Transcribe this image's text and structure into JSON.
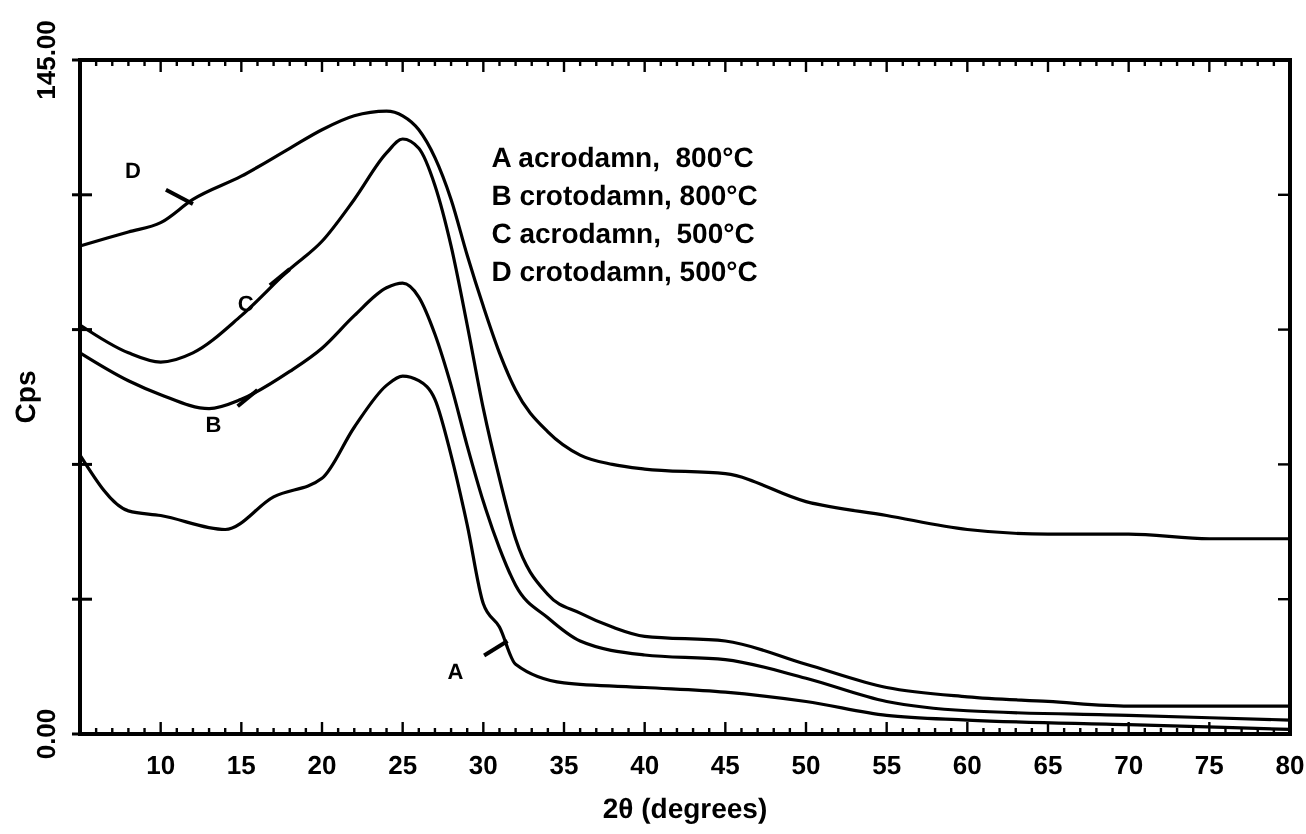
{
  "chart_data": {
    "type": "line",
    "xlabel": "2θ (degrees)",
    "ylabel": "Cps",
    "xlim": [
      5,
      80
    ],
    "ylim": [
      0,
      145
    ],
    "xticks": [
      {
        "value": 6,
        "label": null
      },
      {
        "value": 7,
        "label": null
      },
      {
        "value": 8,
        "label": null
      },
      {
        "value": 9,
        "label": null
      },
      10,
      {
        "value": 11,
        "label": null
      },
      {
        "value": 12,
        "label": null
      },
      {
        "value": 13,
        "label": null
      },
      {
        "value": 14,
        "label": null
      },
      15,
      {
        "value": 16,
        "label": null
      },
      {
        "value": 17,
        "label": null
      },
      {
        "value": 18,
        "label": null
      },
      {
        "value": 19,
        "label": null
      },
      20,
      {
        "value": 21,
        "label": null
      },
      {
        "value": 22,
        "label": null
      },
      {
        "value": 23,
        "label": null
      },
      {
        "value": 24,
        "label": null
      },
      25,
      {
        "value": 26,
        "label": null
      },
      {
        "value": 27,
        "label": null
      },
      {
        "value": 28,
        "label": null
      },
      {
        "value": 29,
        "label": null
      },
      30,
      {
        "value": 31,
        "label": null
      },
      {
        "value": 32,
        "label": null
      },
      {
        "value": 33,
        "label": null
      },
      {
        "value": 34,
        "label": null
      },
      35,
      {
        "value": 36,
        "label": null
      },
      {
        "value": 37,
        "label": null
      },
      {
        "value": 38,
        "label": null
      },
      {
        "value": 39,
        "label": null
      },
      40,
      {
        "value": 41,
        "label": null
      },
      {
        "value": 42,
        "label": null
      },
      {
        "value": 43,
        "label": null
      },
      {
        "value": 44,
        "label": null
      },
      45,
      {
        "value": 46,
        "label": null
      },
      {
        "value": 47,
        "label": null
      },
      {
        "value": 48,
        "label": null
      },
      {
        "value": 49,
        "label": null
      },
      50,
      {
        "value": 51,
        "label": null
      },
      {
        "value": 52,
        "label": null
      },
      {
        "value": 53,
        "label": null
      },
      {
        "value": 54,
        "label": null
      },
      55,
      {
        "value": 56,
        "label": null
      },
      {
        "value": 57,
        "label": null
      },
      {
        "value": 58,
        "label": null
      },
      {
        "value": 59,
        "label": null
      },
      60,
      {
        "value": 61,
        "label": null
      },
      {
        "value": 62,
        "label": null
      },
      {
        "value": 63,
        "label": null
      },
      {
        "value": 64,
        "label": null
      },
      65,
      {
        "value": 66,
        "label": null
      },
      {
        "value": 67,
        "label": null
      },
      {
        "value": 68,
        "label": null
      },
      {
        "value": 69,
        "label": null
      },
      70,
      {
        "value": 71,
        "label": null
      },
      {
        "value": 72,
        "label": null
      },
      {
        "value": 73,
        "label": null
      },
      {
        "value": 74,
        "label": null
      },
      75,
      {
        "value": 76,
        "label": null
      },
      {
        "value": 77,
        "label": null
      },
      {
        "value": 78,
        "label": null
      },
      {
        "value": 79,
        "label": null
      },
      80
    ],
    "yticks": [
      {
        "value": 0,
        "label": "0.00"
      },
      {
        "value": 29,
        "label": null
      },
      {
        "value": 58,
        "label": null
      },
      {
        "value": 87,
        "label": null
      },
      {
        "value": 116,
        "label": null
      },
      {
        "value": 145,
        "label": "145.00"
      }
    ],
    "grid": false,
    "marker": "none",
    "line_style": "solid",
    "series": [
      {
        "color": "#000000",
        "x": [
          5,
          8,
          10,
          12,
          15,
          18,
          20,
          22,
          24,
          25,
          26,
          27,
          28,
          29,
          30,
          31,
          32,
          34,
          36,
          38,
          40,
          45,
          50,
          55,
          60,
          65,
          70,
          75,
          80
        ],
        "values": [
          105,
          108,
          110,
          115,
          120,
          126,
          130,
          133,
          134,
          133,
          130,
          124,
          115,
          103,
          92,
          82,
          74,
          65,
          60,
          58,
          57,
          56,
          50,
          47,
          44,
          43,
          43,
          42,
          42
        ]
      },
      {
        "color": "#000000",
        "x": [
          5,
          8,
          10,
          12,
          15,
          18,
          20,
          22,
          24,
          25,
          26,
          27,
          28,
          29,
          30,
          31,
          32,
          34,
          36,
          38,
          40,
          45,
          50,
          55,
          60,
          65,
          70,
          75,
          80
        ],
        "values": [
          88,
          82,
          80,
          82,
          90,
          100,
          106,
          115,
          125,
          128,
          126,
          118,
          105,
          88,
          70,
          55,
          42,
          30,
          26,
          23,
          21,
          20,
          15,
          10,
          8,
          7,
          6,
          6,
          6
        ]
      },
      {
        "color": "#000000",
        "x": [
          5,
          8,
          10,
          13,
          15,
          18,
          20,
          22,
          24,
          25,
          26,
          27,
          28,
          29,
          30,
          31,
          32,
          34,
          36,
          40,
          45,
          50,
          55,
          60,
          70,
          80
        ],
        "values": [
          82,
          76,
          73,
          70,
          72,
          78,
          83,
          90,
          96,
          97,
          94,
          86,
          75,
          62,
          50,
          40,
          32,
          25,
          20,
          17,
          16,
          12,
          7,
          5,
          4,
          3
        ]
      },
      {
        "color": "#000000",
        "x": [
          5,
          8,
          10,
          14,
          17,
          20,
          22,
          24,
          25,
          26,
          27,
          28,
          29,
          30,
          31,
          32,
          35,
          40,
          45,
          50,
          55,
          60,
          70,
          80
        ],
        "values": [
          60,
          48,
          47,
          44,
          51,
          55,
          66,
          75,
          77,
          76,
          72,
          60,
          45,
          28,
          23,
          15,
          11,
          10,
          9,
          7,
          4,
          3,
          2,
          1
        ]
      }
    ],
    "annotations": [
      {
        "text": "D",
        "x": 12,
        "y": 114
      },
      {
        "text": "C",
        "x": 18,
        "y": 100
      },
      {
        "text": "B",
        "x": 16,
        "y": 74
      },
      {
        "text": "A",
        "x": 31.5,
        "y": 20
      },
      "A acrodamn,  800°C",
      "B crotodamn, 800°C",
      "C acrodamn,  500°C",
      "D crotodamn, 500°C"
    ]
  }
}
